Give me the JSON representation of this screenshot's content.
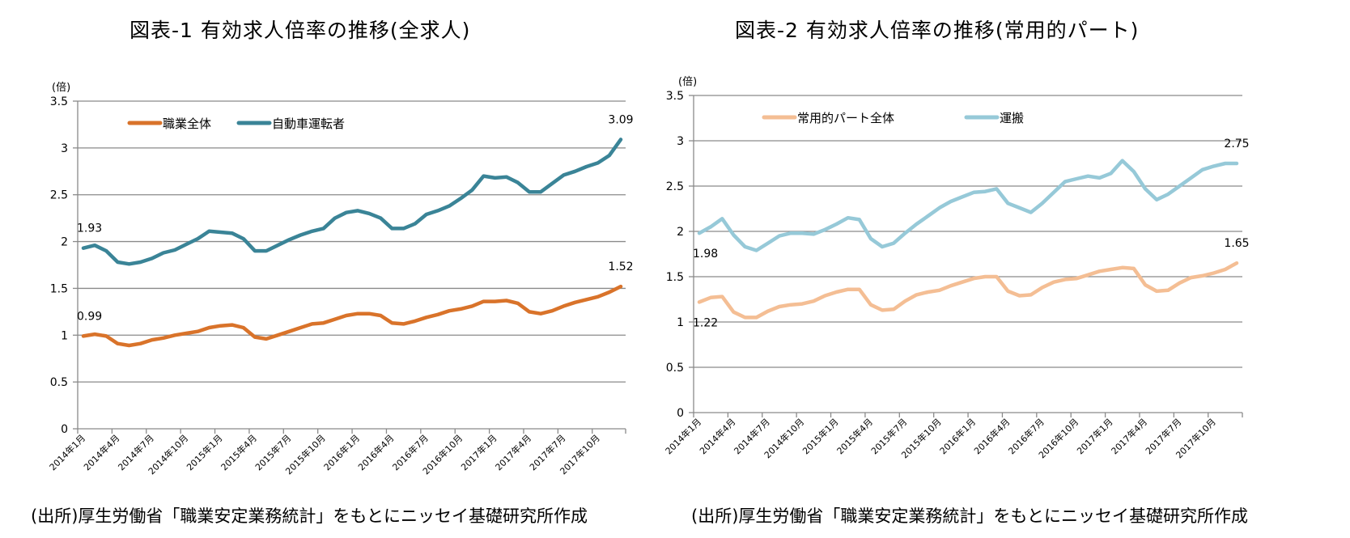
{
  "footnote": "(出所)厚生労働省「職業安定業務統計」をもとにニッセイ基礎研究所作成",
  "chart_data": [
    {
      "id": "chart1",
      "type": "line",
      "title": "図表-1  有効求人倍率の推移(全求人)",
      "ylabel": "(倍)",
      "xlabel": "",
      "ylim": [
        0,
        3.5
      ],
      "yticks": [
        "0",
        "0.5",
        "1",
        "1.5",
        "2",
        "2.5",
        "3",
        "3.5"
      ],
      "ytick_values": [
        0,
        0.5,
        1,
        1.5,
        2,
        2.5,
        3,
        3.5
      ],
      "grid": true,
      "legend_position": "top-left",
      "x": [
        "2014年1月",
        "2014年2月",
        "2014年3月",
        "2014年4月",
        "2014年5月",
        "2014年6月",
        "2014年7月",
        "2014年8月",
        "2014年9月",
        "2014年10月",
        "2014年11月",
        "2014年12月",
        "2015年1月",
        "2015年2月",
        "2015年3月",
        "2015年4月",
        "2015年5月",
        "2015年6月",
        "2015年7月",
        "2015年8月",
        "2015年9月",
        "2015年10月",
        "2015年11月",
        "2015年12月",
        "2016年1月",
        "2016年2月",
        "2016年3月",
        "2016年4月",
        "2016年5月",
        "2016年6月",
        "2016年7月",
        "2016年8月",
        "2016年9月",
        "2016年10月",
        "2016年11月",
        "2016年12月",
        "2017年1月",
        "2017年2月",
        "2017年3月",
        "2017年4月",
        "2017年5月",
        "2017年6月",
        "2017年7月",
        "2017年8月",
        "2017年9月",
        "2017年10月",
        "2017年11月",
        "2017年12月"
      ],
      "xtick_labels": [
        "2014年1月",
        "2014年4月",
        "2014年7月",
        "2014年10月",
        "2015年1月",
        "2015年4月",
        "2015年7月",
        "2015年10月",
        "2016年1月",
        "2016年4月",
        "2016年7月",
        "2016年10月",
        "2017年1月",
        "2017年4月",
        "2017年7月",
        "2017年10月"
      ],
      "series": [
        {
          "name": "職業全体",
          "color": "#D9732A",
          "values": [
            0.99,
            1.01,
            0.99,
            0.91,
            0.89,
            0.91,
            0.95,
            0.97,
            1.0,
            1.02,
            1.04,
            1.08,
            1.1,
            1.11,
            1.08,
            0.98,
            0.96,
            1.0,
            1.04,
            1.08,
            1.12,
            1.13,
            1.17,
            1.21,
            1.23,
            1.23,
            1.21,
            1.13,
            1.12,
            1.15,
            1.19,
            1.22,
            1.26,
            1.28,
            1.31,
            1.36,
            1.36,
            1.37,
            1.34,
            1.25,
            1.23,
            1.26,
            1.31,
            1.35,
            1.38,
            1.41,
            1.46,
            1.52
          ],
          "annotations": [
            {
              "index": 0,
              "text": "0.99",
              "position": "above"
            },
            {
              "index": 47,
              "text": "1.52",
              "position": "above"
            }
          ]
        },
        {
          "name": "自動車運転者",
          "color": "#3A8497",
          "values": [
            1.93,
            1.96,
            1.9,
            1.78,
            1.76,
            1.78,
            1.82,
            1.88,
            1.91,
            1.97,
            2.03,
            2.11,
            2.1,
            2.09,
            2.03,
            1.9,
            1.9,
            1.96,
            2.02,
            2.07,
            2.11,
            2.14,
            2.25,
            2.31,
            2.33,
            2.3,
            2.25,
            2.14,
            2.14,
            2.19,
            2.29,
            2.33,
            2.38,
            2.46,
            2.55,
            2.7,
            2.68,
            2.69,
            2.63,
            2.53,
            2.53,
            2.62,
            2.71,
            2.75,
            2.8,
            2.84,
            2.92,
            3.09
          ],
          "annotations": [
            {
              "index": 0,
              "text": "1.93",
              "position": "above"
            },
            {
              "index": 47,
              "text": "3.09",
              "position": "above"
            }
          ]
        }
      ]
    },
    {
      "id": "chart2",
      "type": "line",
      "title": "図表-2  有効求人倍率の推移(常用的パート)",
      "ylabel": "(倍)",
      "xlabel": "",
      "ylim": [
        0,
        3.5
      ],
      "yticks": [
        "0",
        "0.5",
        "1",
        "1.5",
        "2",
        "2.5",
        "3",
        "3.5"
      ],
      "ytick_values": [
        0,
        0.5,
        1,
        1.5,
        2,
        2.5,
        3,
        3.5
      ],
      "grid": true,
      "legend_position": "top-left",
      "x": [
        "2014年1月",
        "2014年2月",
        "2014年3月",
        "2014年4月",
        "2014年5月",
        "2014年6月",
        "2014年7月",
        "2014年8月",
        "2014年9月",
        "2014年10月",
        "2014年11月",
        "2014年12月",
        "2015年1月",
        "2015年2月",
        "2015年3月",
        "2015年4月",
        "2015年5月",
        "2015年6月",
        "2015年7月",
        "2015年8月",
        "2015年9月",
        "2015年10月",
        "2015年11月",
        "2015年12月",
        "2016年1月",
        "2016年2月",
        "2016年3月",
        "2016年4月",
        "2016年5月",
        "2016年6月",
        "2016年7月",
        "2016年8月",
        "2016年9月",
        "2016年10月",
        "2016年11月",
        "2016年12月",
        "2017年1月",
        "2017年2月",
        "2017年3月",
        "2017年4月",
        "2017年5月",
        "2017年6月",
        "2017年7月",
        "2017年8月",
        "2017年9月",
        "2017年10月",
        "2017年11月",
        "2017年12月"
      ],
      "xtick_labels": [
        "2014年1月",
        "2014年4月",
        "2014年7月",
        "2014年10月",
        "2015年1月",
        "2015年4月",
        "2015年7月",
        "2015年10月",
        "2016年1月",
        "2016年4月",
        "2016年7月",
        "2016年10月",
        "2017年1月",
        "2017年4月",
        "2017年7月",
        "2017年10月"
      ],
      "series": [
        {
          "name": "常用的パート全体",
          "color": "#F4BE94",
          "values": [
            1.22,
            1.27,
            1.28,
            1.11,
            1.05,
            1.05,
            1.12,
            1.17,
            1.19,
            1.2,
            1.23,
            1.29,
            1.33,
            1.36,
            1.36,
            1.19,
            1.13,
            1.14,
            1.23,
            1.3,
            1.33,
            1.35,
            1.4,
            1.44,
            1.48,
            1.5,
            1.5,
            1.34,
            1.29,
            1.3,
            1.38,
            1.44,
            1.47,
            1.48,
            1.52,
            1.56,
            1.58,
            1.6,
            1.59,
            1.41,
            1.34,
            1.35,
            1.43,
            1.49,
            1.51,
            1.54,
            1.58,
            1.65
          ],
          "annotations": [
            {
              "index": 0,
              "text": "1.22",
              "position": "below"
            },
            {
              "index": 47,
              "text": "1.65",
              "position": "above"
            }
          ]
        },
        {
          "name": "運搬",
          "color": "#96C9D8",
          "values": [
            1.98,
            2.05,
            2.14,
            1.96,
            1.83,
            1.79,
            1.87,
            1.95,
            1.98,
            1.98,
            1.97,
            2.02,
            2.08,
            2.15,
            2.13,
            1.92,
            1.83,
            1.87,
            1.98,
            2.08,
            2.17,
            2.26,
            2.33,
            2.38,
            2.43,
            2.44,
            2.47,
            2.31,
            2.26,
            2.21,
            2.31,
            2.43,
            2.55,
            2.58,
            2.61,
            2.59,
            2.64,
            2.78,
            2.66,
            2.47,
            2.35,
            2.41,
            2.5,
            2.59,
            2.68,
            2.72,
            2.75,
            2.75
          ],
          "annotations": [
            {
              "index": 0,
              "text": "1.98",
              "position": "below"
            },
            {
              "index": 47,
              "text": "2.75",
              "position": "above"
            }
          ]
        }
      ]
    }
  ]
}
